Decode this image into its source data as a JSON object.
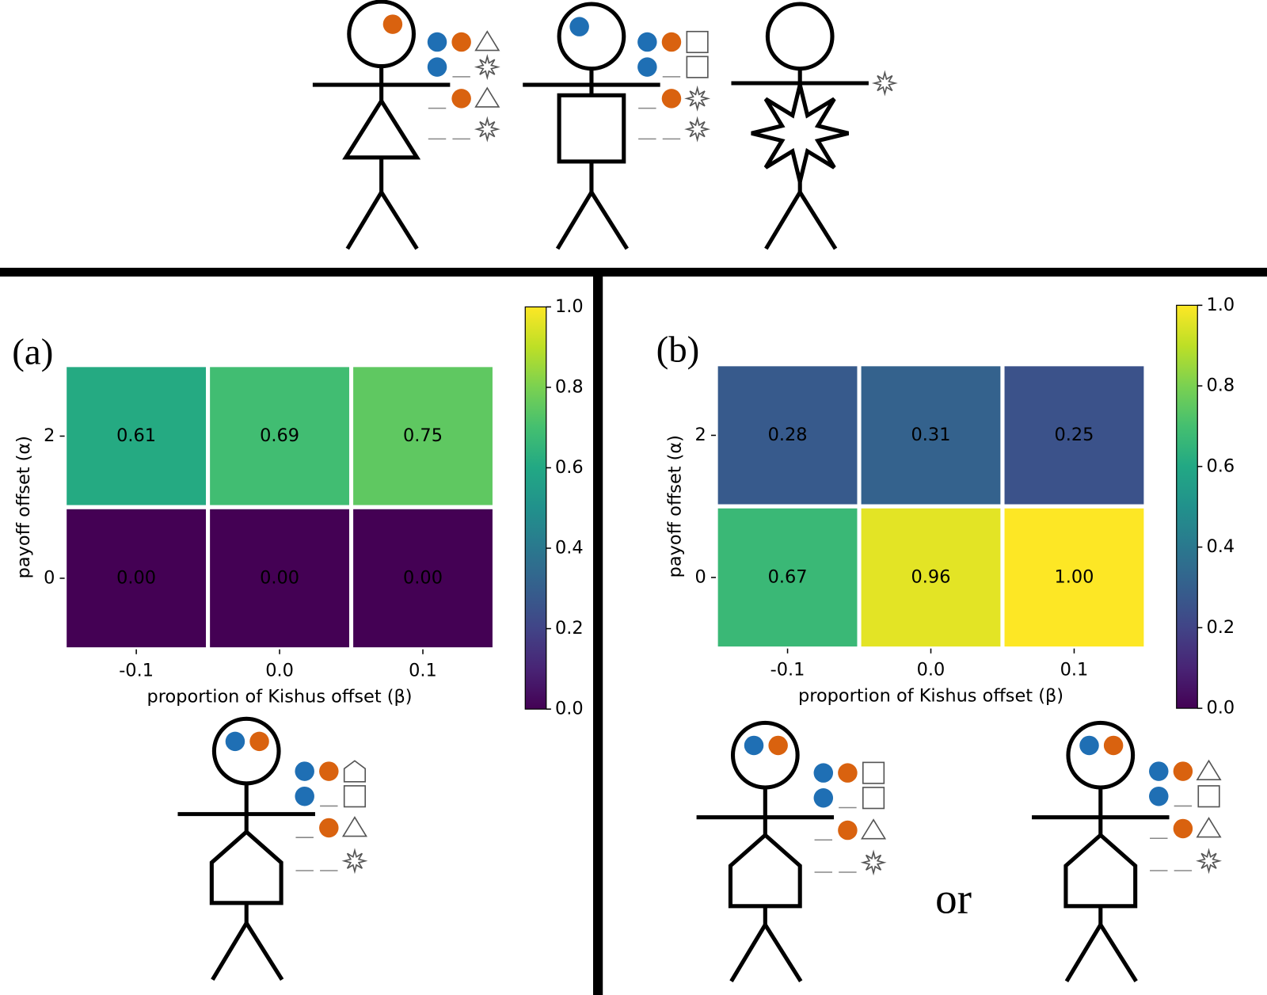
{
  "chart_data": [
    {
      "type": "heatmap",
      "panel_label": "(a)",
      "x_label": "proportion of Kishus offset (β)",
      "y_label": "payoff offset (α)",
      "x_categories": [
        "-0.1",
        "0.0",
        "0.1"
      ],
      "y_categories": [
        "2",
        "0"
      ],
      "values": [
        [
          0.61,
          0.69,
          0.75
        ],
        [
          0,
          0,
          0
        ]
      ],
      "value_labels": [
        [
          "0.61",
          "0.69",
          "0.75"
        ],
        [
          "0.00",
          "0.00",
          "0.00"
        ]
      ],
      "colormap": "viridis",
      "clim": [
        0,
        1
      ],
      "cticks": [
        {
          "value": 0,
          "label": "0.0"
        },
        0.2,
        0.4,
        0.6,
        0.8,
        {
          "value": 1,
          "label": "1.0"
        }
      ]
    },
    {
      "type": "heatmap",
      "panel_label": "(b)",
      "x_label": "proportion of Kishus offset (β)",
      "y_label": "payoff offset (α)",
      "x_categories": [
        "-0.1",
        "0.0",
        "0.1"
      ],
      "y_categories": [
        "2",
        "0"
      ],
      "values": [
        [
          0.28,
          0.31,
          0.25
        ],
        [
          0.67,
          0.96,
          1
        ]
      ],
      "value_labels": [
        [
          "0.28",
          "0.31",
          "0.25"
        ],
        [
          "0.67",
          "0.96",
          "1.00"
        ]
      ],
      "colormap": "viridis",
      "clim": [
        0,
        1
      ],
      "cticks": [
        {
          "value": 0,
          "label": "0.0"
        },
        0.2,
        0.4,
        0.6,
        0.8,
        {
          "value": 1,
          "label": "1.0"
        }
      ],
      "annotation": "or"
    }
  ]
}
